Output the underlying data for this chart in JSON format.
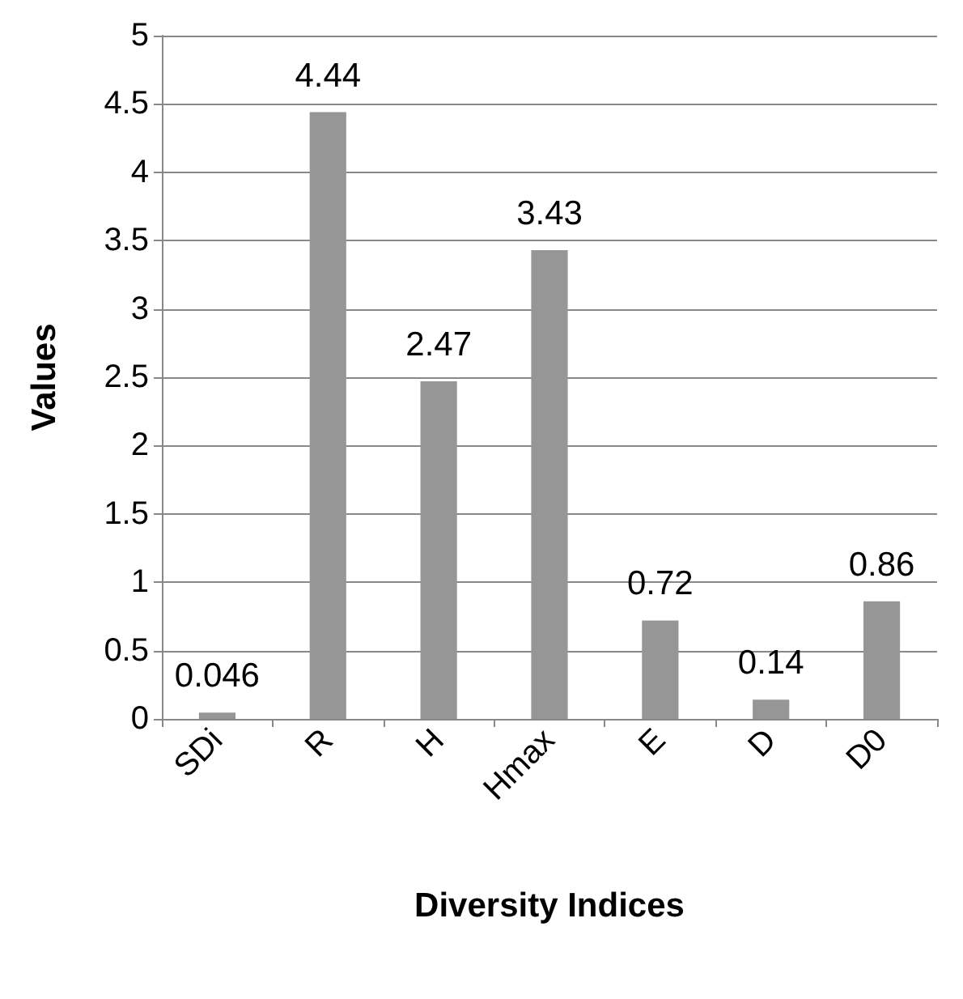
{
  "chart_data": {
    "type": "bar",
    "xlabel": "Diversity Indices",
    "ylabel": "Values",
    "categories": [
      "SDi",
      "R",
      "H",
      "Hmax",
      "E",
      "D",
      "D0"
    ],
    "values": [
      0.046,
      4.44,
      2.47,
      3.43,
      0.72,
      0.14,
      0.86
    ],
    "color": "#969696",
    "ylim": [
      0,
      5
    ],
    "yticks": [
      0,
      0.5,
      1,
      1.5,
      2,
      2.5,
      3,
      3.5,
      4,
      4.5,
      5
    ],
    "grid": "y",
    "data_labels": true
  }
}
